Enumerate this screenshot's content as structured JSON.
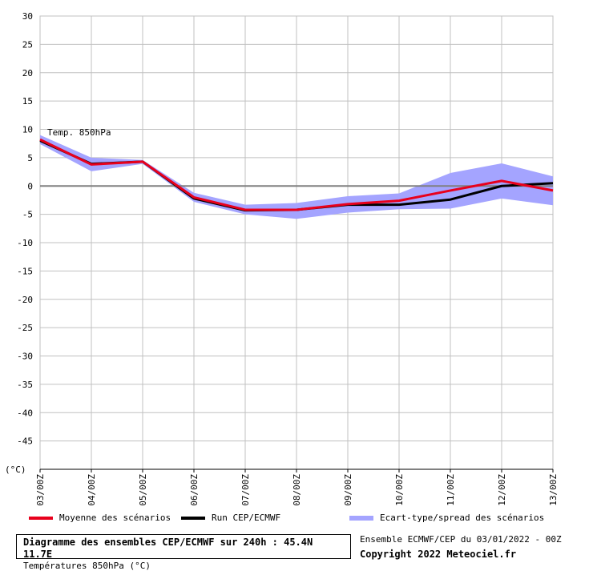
{
  "chart_data": {
    "type": "line",
    "title": "Diagramme des ensembles CEP/ECMWF sur 240h : 45.4N 11.7E",
    "subtitle": "Températures 850hPa (°C)",
    "annotation": "Temp. 850hPa",
    "ylabel": "(°C)",
    "xlabel": "",
    "ylim": [
      -50,
      30
    ],
    "yticks": [
      30,
      25,
      20,
      15,
      10,
      5,
      0,
      -5,
      -10,
      -15,
      -20,
      -25,
      -30,
      -35,
      -40,
      -45
    ],
    "categories": [
      "03/00Z",
      "04/00Z",
      "05/00Z",
      "06/00Z",
      "07/00Z",
      "08/00Z",
      "09/00Z",
      "10/00Z",
      "11/00Z",
      "12/00Z",
      "13/00Z"
    ],
    "grid": true,
    "legend_position": "bottom",
    "series": [
      {
        "name": "Moyenne des scénarios",
        "color": "#e8001c",
        "values": [
          8.2,
          3.8,
          4.3,
          -2.0,
          -4.2,
          -4.2,
          -3.2,
          -2.6,
          -0.8,
          0.9,
          -0.8
        ]
      },
      {
        "name": "Run CEP/ECMWF",
        "color": "#000000",
        "values": [
          8.0,
          3.9,
          4.3,
          -2.2,
          -4.3,
          -4.2,
          -3.3,
          -3.3,
          -2.4,
          0.0,
          0.5
        ]
      }
    ],
    "band": {
      "name": "Ecart-type/spread des scénarios",
      "color": "#a4a4ff",
      "upper": [
        9.0,
        5.0,
        4.6,
        -1.2,
        -3.3,
        -3.0,
        -1.8,
        -1.3,
        2.3,
        4.0,
        1.7
      ],
      "lower": [
        7.4,
        2.6,
        3.9,
        -2.8,
        -5.0,
        -5.8,
        -4.7,
        -4.1,
        -4.0,
        -2.2,
        -3.4
      ]
    }
  },
  "footer": {
    "ensemble_info": "Ensemble ECMWF/CEP du 03/01/2022 - 00Z",
    "copyright": "Copyright 2022 Meteociel.fr"
  }
}
